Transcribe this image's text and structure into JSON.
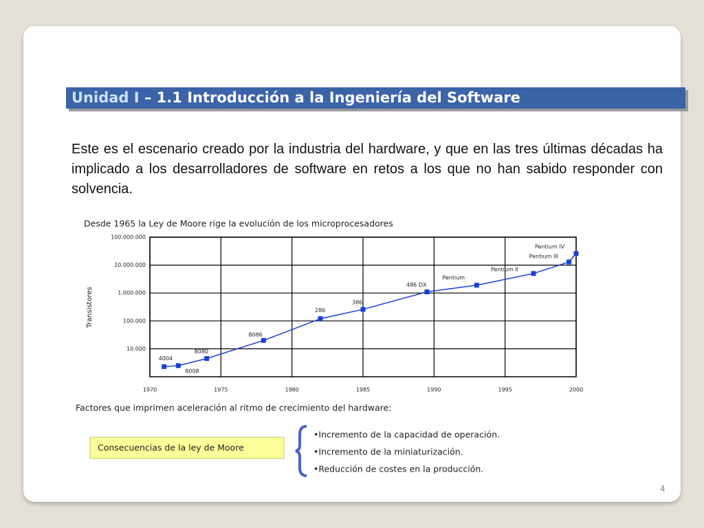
{
  "slide": {
    "title_unit": "Unidad I",
    "title_rest": " – 1.1 Introducción a la Ingeniería del Software",
    "paragraph": "Este es el escenario creado por la industria del hardware, y que en las tres últimas décadas ha implicado a los desarrolladores de software en retos a los que no han sabido responder con solvencia.",
    "factors_heading": "Factores que imprimen aceleración al ritmo de crecimiento del hardware:",
    "consequences_box": "Consecuencias de la ley de Moore",
    "bullets": [
      "•Incremento de la capacidad de operación.",
      "•Incremento de la miniaturización.",
      "•Reducción de costes en la producción."
    ],
    "page_number": "4"
  },
  "chart_data": {
    "type": "line",
    "title": "Desde 1965 la Ley de Moore rige la evolución de los microprocesadores",
    "y_label": "Transistores",
    "log_scale": true,
    "grid": true,
    "xlim": [
      1970,
      2000
    ],
    "xticks": [
      1970,
      1975,
      1980,
      1985,
      1990,
      1995,
      2000
    ],
    "ylim": [
      1000,
      100000000
    ],
    "yticks": [
      {
        "value": 10000,
        "label": "10.000"
      },
      {
        "value": 100000,
        "label": "100.000"
      },
      {
        "value": 1000000,
        "label": "1.000.000"
      },
      {
        "value": 10000000,
        "label": "10.000.000"
      },
      {
        "value": 100000000,
        "label": "100.000.000"
      }
    ],
    "series": [
      {
        "name": "Transistores",
        "color": "#1a3fd6",
        "x": [
          1971,
          1972,
          1974,
          1978,
          1982,
          1985,
          1989.5,
          1993,
          1997,
          1999.5,
          2000
        ],
        "values": [
          2300,
          2500,
          4500,
          20000,
          120000,
          260000,
          1100000,
          1900000,
          5000000,
          13000000,
          26000000
        ],
        "point_labels": [
          "4004",
          "8008",
          "8080",
          "8086",
          "286",
          "386",
          "486 DX",
          "Pentium",
          "Pentium II",
          "Pentium III",
          "Pentium IV"
        ]
      }
    ]
  }
}
